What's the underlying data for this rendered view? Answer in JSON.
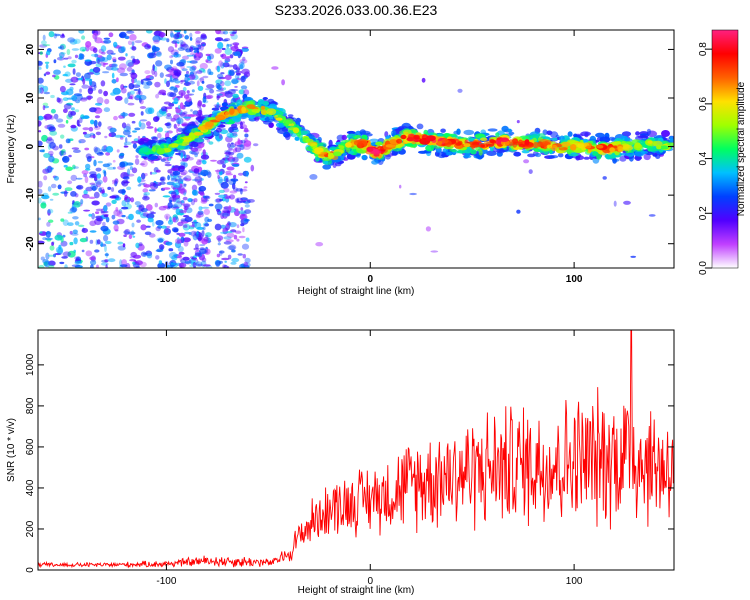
{
  "title": "S233.2026.033.00.36.E23",
  "chart_data": [
    {
      "type": "heatmap",
      "title": "S233.2026.033.00.36.E23",
      "xlabel": "Height of straight line (km)",
      "ylabel": "Frequency (Hz)",
      "xlim": [
        -163,
        149
      ],
      "ylim": [
        -25,
        24
      ],
      "x_ticks": [
        -100,
        0,
        100
      ],
      "x_tick_labels": [
        "-100",
        "0",
        "100"
      ],
      "y_ticks": [
        -20,
        -10,
        0,
        10,
        20
      ],
      "y_tick_labels": [
        "-20",
        "-10",
        "0",
        "10",
        "20"
      ],
      "colorbar": {
        "label": "Normalized spectral amplitude",
        "range": [
          0.0,
          0.87
        ],
        "ticks": [
          0.0,
          0.2,
          0.4,
          0.6,
          0.8
        ],
        "tick_labels": [
          "0.0",
          "0.2",
          "0.4",
          "0.6",
          "0.8"
        ],
        "colormap": [
          "#ffffff",
          "#c040ff",
          "#5000ff",
          "#0040ff",
          "#00c0ff",
          "#00ff60",
          "#a0ff00",
          "#ffe000",
          "#ff6000",
          "#ff0000",
          "#ff2080"
        ]
      },
      "ridge": {
        "x": [
          -113,
          -100,
          -90,
          -82,
          -75,
          -68,
          -60,
          -52,
          -45,
          -38,
          -32,
          -27,
          -22,
          -17,
          -13,
          -8,
          -3,
          0,
          3,
          8,
          13,
          18,
          25,
          35,
          45,
          55,
          65,
          75,
          85,
          95,
          105,
          115,
          125,
          135,
          148
        ],
        "freq": [
          -1,
          -0.5,
          1.5,
          3.5,
          5.5,
          7,
          8,
          7.5,
          6,
          4,
          2,
          -0.5,
          -1.5,
          -2,
          0,
          0.5,
          0.5,
          -0.5,
          -1.5,
          0,
          1,
          2,
          1.5,
          1,
          0.5,
          0.5,
          1,
          0.5,
          0.5,
          0,
          0,
          -0.5,
          0,
          0.5,
          0
        ],
        "amplitude": [
          0.35,
          0.4,
          0.45,
          0.5,
          0.55,
          0.55,
          0.55,
          0.5,
          0.45,
          0.45,
          0.4,
          0.5,
          0.6,
          0.5,
          0.4,
          0.55,
          0.7,
          0.8,
          0.75,
          0.55,
          0.6,
          0.65,
          0.7,
          0.65,
          0.6,
          0.65,
          0.65,
          0.6,
          0.6,
          0.55,
          0.5,
          0.65,
          0.5,
          0.45,
          0.4
        ]
      }
    },
    {
      "type": "line",
      "xlabel": "Height of straight line (km)",
      "ylabel": "SNR (10 * v/v)",
      "xlim": [
        -163,
        149
      ],
      "ylim": [
        0,
        1170
      ],
      "x_ticks": [
        -100,
        0,
        100
      ],
      "x_tick_labels": [
        "-100",
        "0",
        "100"
      ],
      "y_ticks": [
        0,
        200,
        400,
        600,
        800,
        1000
      ],
      "y_tick_labels": [
        "0",
        "200",
        "400",
        "600",
        "800",
        "1000"
      ],
      "color": "#ff0000",
      "envelope": {
        "x": [
          -163,
          -130,
          -100,
          -80,
          -60,
          -48,
          -40,
          -35,
          -28,
          -20,
          -10,
          0,
          10,
          20,
          30,
          40,
          50,
          60,
          70,
          80,
          90,
          100,
          110,
          120,
          128,
          135,
          149
        ],
        "center": [
          25,
          25,
          30,
          45,
          40,
          35,
          80,
          160,
          240,
          300,
          330,
          350,
          380,
          420,
          450,
          470,
          480,
          500,
          510,
          520,
          520,
          530,
          540,
          550,
          580,
          520,
          500
        ],
        "spread": [
          10,
          10,
          15,
          25,
          25,
          15,
          40,
          80,
          100,
          120,
          140,
          150,
          170,
          200,
          220,
          240,
          250,
          260,
          270,
          280,
          280,
          290,
          300,
          300,
          330,
          280,
          250
        ]
      },
      "peak": {
        "x": 128,
        "y": 1170
      }
    }
  ]
}
